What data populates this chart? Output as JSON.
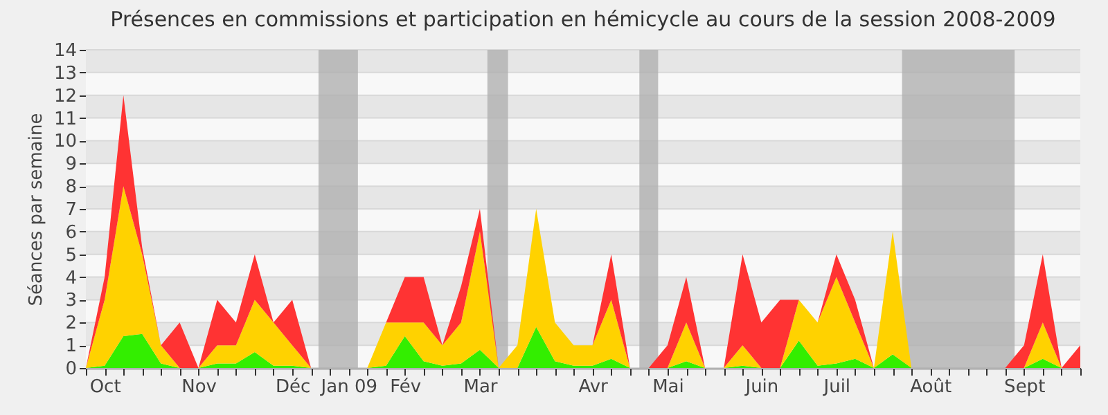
{
  "chart_data": {
    "type": "area",
    "stacked": true,
    "title": "Présences en commissions et participation en hémicycle au cours de la session 2008-2009",
    "ylabel": "Séances par semaine",
    "categories": [
      null,
      "Oct",
      null,
      null,
      null,
      null,
      "Nov",
      null,
      null,
      null,
      null,
      "Déc",
      null,
      null,
      "Jan 09",
      null,
      null,
      "Fév",
      null,
      null,
      null,
      "Mar",
      null,
      null,
      null,
      null,
      null,
      "Avr",
      null,
      null,
      null,
      "Mai",
      null,
      null,
      null,
      null,
      "Juin",
      null,
      null,
      null,
      "Juil",
      null,
      null,
      null,
      null,
      "Août",
      null,
      null,
      null,
      null,
      "Sept",
      null,
      null,
      null
    ],
    "series": [
      {
        "color": "#33ee00",
        "values": [
          0,
          0.1,
          1.4,
          1.5,
          0.2,
          0,
          0,
          0.2,
          0.2,
          0.7,
          0.1,
          0.1,
          0,
          0,
          0,
          0,
          0.1,
          1.4,
          0.3,
          0.1,
          0.2,
          0.8,
          0,
          0,
          1.8,
          0.3,
          0.1,
          0.1,
          0.4,
          0,
          0,
          0,
          0.3,
          0,
          0,
          0.1,
          0,
          0,
          1.2,
          0.1,
          0.2,
          0.4,
          0,
          0.6,
          0,
          0,
          0,
          0,
          0,
          0,
          0,
          0.4,
          0,
          0
        ]
      },
      {
        "color": "#ffd200",
        "values": [
          0,
          2.9,
          6.6,
          3.5,
          0.8,
          0,
          0,
          0.8,
          0.8,
          2.3,
          1.9,
          0.9,
          0,
          0,
          0,
          0,
          1.9,
          0.6,
          1.7,
          0.9,
          1.8,
          5.2,
          0,
          1,
          5.2,
          1.7,
          0.9,
          0.9,
          2.6,
          0,
          0,
          0,
          1.7,
          0,
          0,
          0.9,
          0,
          0,
          1.8,
          1.9,
          3.8,
          1.6,
          0,
          5.4,
          0,
          0,
          0,
          0,
          0,
          0,
          0,
          1.6,
          0,
          0
        ]
      },
      {
        "color": "#ff3333",
        "values": [
          0,
          1,
          4,
          0.3,
          0,
          2,
          0,
          2,
          1,
          2,
          0,
          2,
          0,
          0,
          0,
          0,
          0,
          2,
          2,
          0,
          1.6,
          1,
          0,
          0,
          0,
          0,
          0,
          0,
          2,
          0,
          0,
          1,
          2,
          0,
          0,
          4,
          2,
          3,
          0,
          0,
          1,
          1,
          0,
          0,
          0,
          0,
          0,
          0,
          0,
          0,
          1,
          3,
          0,
          1
        ]
      }
    ],
    "ylim": [
      0,
      14
    ],
    "yticks": [
      0,
      1,
      2,
      3,
      4,
      5,
      6,
      7,
      8,
      9,
      10,
      11,
      12,
      13,
      14
    ],
    "grid": "y"
  }
}
